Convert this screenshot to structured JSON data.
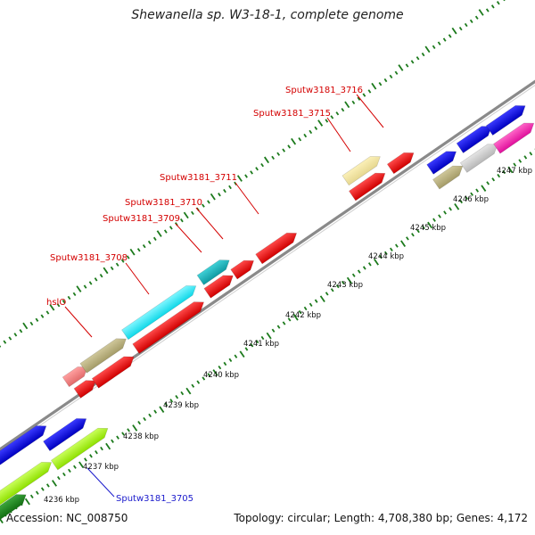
{
  "title": "Shewanella sp. W3-18-1, complete genome",
  "footer": {
    "accession": "Accession: NC_008750",
    "summary": "Topology: circular; Length: 4,708,380 bp; Genes: 4,172"
  },
  "backbone_color": "#8a8a8a",
  "tick_color": "#1c7a1c",
  "kbp_labels": [
    "4236 kbp",
    "4237 kbp",
    "4238 kbp",
    "4239 kbp",
    "4240 kbp",
    "4241 kbp",
    "4242 kbp",
    "4243 kbp",
    "4244 kbp",
    "4245 kbp",
    "4246 kbp",
    "4247 kbp"
  ],
  "gene_labels": [
    {
      "text": "Sputw3181_3716",
      "color": "#d40000"
    },
    {
      "text": "Sputw3181_3715",
      "color": "#d40000"
    },
    {
      "text": "Sputw3181_3711",
      "color": "#d40000"
    },
    {
      "text": "Sputw3181_3710",
      "color": "#d40000"
    },
    {
      "text": "Sputw3181_3709",
      "color": "#d40000"
    },
    {
      "text": "Sputw3181_3708",
      "color": "#d40000"
    },
    {
      "text": "hslO",
      "color": "#d40000"
    },
    {
      "text": "Sputw3181_3705",
      "color": "#1a1acc"
    }
  ]
}
